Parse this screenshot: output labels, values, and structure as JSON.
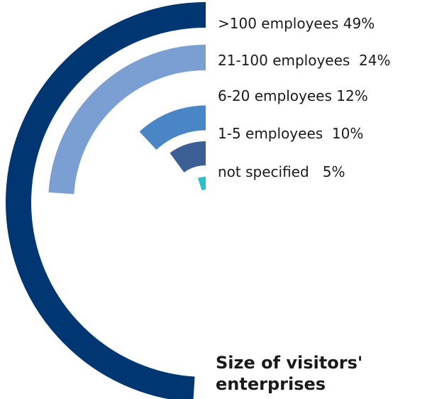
{
  "chart_data": {
    "type": "radial-bar",
    "title": "Size of visitors' enterprises",
    "unit": "%",
    "series": [
      {
        "name": ">100 employees",
        "label": ">100 employees 49%",
        "value": 49,
        "color": "#003671"
      },
      {
        "name": "21-100 employees",
        "label": "21-100 employees  24%",
        "value": 24,
        "color": "#7B9FD2"
      },
      {
        "name": "6-20 employees",
        "label": "6-20 employees 12%",
        "value": 12,
        "color": "#4A86C5"
      },
      {
        "name": "1-5 employees",
        "label": "1-5 employees  10%",
        "value": 10,
        "color": "#3B5F95"
      },
      {
        "name": "not specified",
        "label": "not specified   5%",
        "value": 5,
        "color": "#2BBFC6"
      }
    ],
    "legend": "right"
  }
}
